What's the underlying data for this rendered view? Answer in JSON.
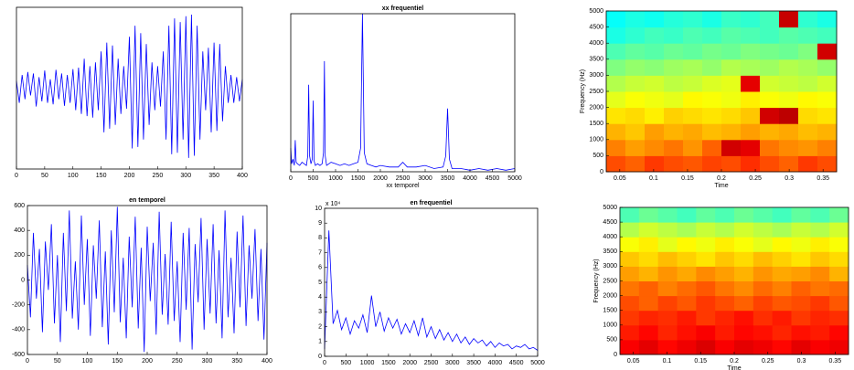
{
  "chart_data": [
    {
      "type": "line",
      "color": "#0000ff",
      "x": [
        0,
        5,
        10,
        15,
        20,
        25,
        30,
        35,
        40,
        45,
        50,
        55,
        60,
        65,
        70,
        75,
        80,
        85,
        90,
        95,
        100,
        105,
        110,
        115,
        120,
        125,
        130,
        135,
        140,
        145,
        150,
        155,
        160,
        165,
        170,
        175,
        180,
        185,
        190,
        195,
        200,
        205,
        210,
        215,
        220,
        225,
        230,
        235,
        240,
        245,
        250,
        255,
        260,
        265,
        270,
        275,
        280,
        285,
        290,
        295,
        300,
        305,
        310,
        315,
        320,
        325,
        330,
        335,
        340,
        345,
        350,
        355,
        360,
        365,
        370,
        375,
        380,
        385,
        390,
        395,
        400
      ],
      "values": [
        0.1,
        -0.2,
        0.18,
        -0.15,
        0.22,
        -0.1,
        0.2,
        -0.25,
        0.15,
        -0.18,
        0.24,
        -0.2,
        0.12,
        -0.22,
        0.25,
        -0.15,
        0.2,
        -0.24,
        0.18,
        -0.2,
        0.26,
        -0.3,
        0.28,
        -0.35,
        0.4,
        -0.38,
        0.3,
        -0.4,
        0.35,
        -0.3,
        0.5,
        -0.6,
        0.62,
        -0.55,
        0.58,
        -0.5,
        0.4,
        -0.35,
        0.3,
        -0.28,
        0.7,
        -0.82,
        0.85,
        -0.8,
        0.75,
        -0.7,
        0.6,
        -0.5,
        0.35,
        -0.3,
        0.3,
        -0.25,
        0.5,
        -0.7,
        0.85,
        -0.9,
        0.95,
        -0.88,
        0.9,
        -0.7,
        0.98,
        -0.95,
        1.0,
        -0.92,
        0.85,
        -0.7,
        0.5,
        -0.3,
        0.55,
        -0.6,
        0.62,
        -0.58,
        0.6,
        -0.45,
        0.3,
        -0.2,
        0.18,
        -0.2,
        0.15,
        -0.18,
        0.12
      ],
      "xlim": [
        0,
        400
      ],
      "ylim": [
        -1.1,
        1.1
      ],
      "xticks": [
        0,
        50,
        100,
        150,
        200,
        250,
        300,
        350,
        400
      ]
    },
    {
      "type": "line",
      "color": "#0000ff",
      "title": "xx frequentiel",
      "xlabel": "xx temporel",
      "x": [
        0,
        20,
        50,
        80,
        100,
        120,
        150,
        200,
        250,
        300,
        350,
        380,
        400,
        420,
        450,
        480,
        500,
        520,
        550,
        600,
        650,
        700,
        730,
        750,
        770,
        800,
        900,
        1000,
        1100,
        1200,
        1300,
        1400,
        1500,
        1560,
        1600,
        1640,
        1700,
        1800,
        1900,
        2000,
        2200,
        2400,
        2500,
        2600,
        2800,
        3000,
        3200,
        3400,
        3460,
        3500,
        3540,
        3600,
        3800,
        4000,
        4200,
        4400,
        4600,
        4800,
        5000
      ],
      "values": [
        0.15,
        0.05,
        0.08,
        0.04,
        0.2,
        0.06,
        0.05,
        0.04,
        0.06,
        0.05,
        0.04,
        0.1,
        0.55,
        0.1,
        0.05,
        0.08,
        0.45,
        0.07,
        0.04,
        0.05,
        0.04,
        0.05,
        0.12,
        0.7,
        0.1,
        0.04,
        0.06,
        0.05,
        0.04,
        0.05,
        0.04,
        0.05,
        0.06,
        0.15,
        1.0,
        0.12,
        0.05,
        0.04,
        0.03,
        0.04,
        0.03,
        0.03,
        0.06,
        0.03,
        0.03,
        0.04,
        0.02,
        0.03,
        0.1,
        0.4,
        0.08,
        0.02,
        0.02,
        0.01,
        0.02,
        0.01,
        0.02,
        0.01,
        0.02
      ],
      "xlim": [
        0,
        5000
      ],
      "ylim": [
        0,
        1
      ],
      "xticks": [
        0,
        500,
        1000,
        1500,
        2000,
        2500,
        3000,
        3500,
        4000,
        4500,
        5000
      ]
    },
    {
      "type": "heatmap",
      "colormap": "jet",
      "xlabel": "Time",
      "ylabel": "Frequency (Hz)",
      "xlim": [
        0.03,
        0.37
      ],
      "ylim": [
        0,
        5000
      ],
      "xticks": [
        0.05,
        0.1,
        0.15,
        0.2,
        0.25,
        0.3,
        0.35
      ],
      "yticks": [
        0,
        500,
        1000,
        1500,
        2000,
        2500,
        3000,
        3500,
        4000,
        4500,
        5000
      ],
      "z": [
        [
          0.8,
          0.78,
          0.82,
          0.8,
          0.79,
          0.81,
          0.8,
          0.83,
          0.8,
          0.78,
          0.82,
          0.8
        ],
        [
          0.75,
          0.72,
          0.74,
          0.76,
          0.73,
          0.78,
          0.92,
          0.9,
          0.76,
          0.74,
          0.73,
          0.75
        ],
        [
          0.7,
          0.68,
          0.72,
          0.7,
          0.71,
          0.69,
          0.7,
          0.72,
          0.7,
          0.71,
          0.69,
          0.7
        ],
        [
          0.65,
          0.66,
          0.64,
          0.67,
          0.66,
          0.65,
          0.66,
          0.68,
          0.92,
          0.94,
          0.66,
          0.65
        ],
        [
          0.6,
          0.62,
          0.61,
          0.6,
          0.63,
          0.62,
          0.61,
          0.64,
          0.62,
          0.61,
          0.63,
          0.62
        ],
        [
          0.55,
          0.57,
          0.58,
          0.56,
          0.57,
          0.59,
          0.6,
          0.9,
          0.58,
          0.57,
          0.56,
          0.58
        ],
        [
          0.5,
          0.52,
          0.51,
          0.53,
          0.54,
          0.52,
          0.55,
          0.54,
          0.53,
          0.55,
          0.54,
          0.52
        ],
        [
          0.45,
          0.47,
          0.46,
          0.48,
          0.47,
          0.49,
          0.48,
          0.5,
          0.49,
          0.48,
          0.5,
          0.92
        ],
        [
          0.4,
          0.42,
          0.44,
          0.43,
          0.45,
          0.44,
          0.46,
          0.45,
          0.44,
          0.46,
          0.45,
          0.44
        ],
        [
          0.38,
          0.4,
          0.39,
          0.41,
          0.42,
          0.4,
          0.43,
          0.42,
          0.44,
          0.93,
          0.42,
          0.4
        ]
      ]
    },
    {
      "type": "line",
      "color": "#0000ff",
      "title": "en temporel",
      "x": [
        0,
        5,
        10,
        15,
        20,
        25,
        30,
        35,
        40,
        45,
        50,
        55,
        60,
        65,
        70,
        75,
        80,
        85,
        90,
        95,
        100,
        105,
        110,
        115,
        120,
        125,
        130,
        135,
        140,
        145,
        150,
        155,
        160,
        165,
        170,
        175,
        180,
        185,
        190,
        195,
        200,
        205,
        210,
        215,
        220,
        225,
        230,
        235,
        240,
        245,
        250,
        255,
        260,
        265,
        270,
        275,
        280,
        285,
        290,
        295,
        300,
        305,
        310,
        315,
        320,
        325,
        330,
        335,
        340,
        345,
        350,
        355,
        360,
        365,
        370,
        375,
        380,
        385,
        390,
        395,
        400
      ],
      "values": [
        120,
        -300,
        380,
        -150,
        250,
        -420,
        310,
        -80,
        450,
        -350,
        200,
        -500,
        380,
        -250,
        560,
        -310,
        150,
        -400,
        520,
        -200,
        330,
        -450,
        280,
        -150,
        480,
        -380,
        230,
        -520,
        400,
        -260,
        590,
        -340,
        180,
        -470,
        350,
        -220,
        510,
        -390,
        260,
        -580,
        430,
        -170,
        300,
        -440,
        550,
        -280,
        210,
        -360,
        470,
        -330,
        150,
        -500,
        380,
        -240,
        420,
        -560,
        290,
        -180,
        500,
        -400,
        330,
        -270,
        450,
        -350,
        240,
        -470,
        560,
        -300,
        180,
        -430,
        390,
        -220,
        520,
        -370,
        280,
        -150,
        410,
        -330,
        250,
        -480,
        300
      ],
      "xlim": [
        0,
        400
      ],
      "ylim": [
        -600,
        600
      ],
      "xticks": [
        0,
        50,
        100,
        150,
        200,
        250,
        300,
        350,
        400
      ],
      "yticks": [
        -600,
        -400,
        -200,
        0,
        200,
        400,
        600
      ]
    },
    {
      "type": "line",
      "color": "#0000ff",
      "title": "en frequentiel",
      "y_multiplier": "x 10⁴",
      "x": [
        0,
        100,
        200,
        300,
        400,
        500,
        600,
        700,
        800,
        900,
        1000,
        1100,
        1200,
        1300,
        1400,
        1500,
        1600,
        1700,
        1800,
        1900,
        2000,
        2100,
        2200,
        2300,
        2400,
        2500,
        2600,
        2700,
        2800,
        2900,
        3000,
        3100,
        3200,
        3300,
        3400,
        3500,
        3600,
        3700,
        3800,
        3900,
        4000,
        4100,
        4200,
        4300,
        4400,
        4500,
        4600,
        4700,
        4800,
        4900,
        5000
      ],
      "values": [
        0.5,
        8.5,
        2.2,
        3.1,
        1.8,
        2.6,
        1.5,
        2.4,
        1.9,
        2.8,
        1.6,
        4.1,
        2.0,
        3.0,
        1.7,
        2.6,
        1.9,
        2.5,
        1.5,
        2.2,
        1.6,
        2.4,
        1.4,
        2.6,
        1.3,
        2.0,
        1.2,
        1.8,
        1.1,
        1.6,
        1.0,
        1.5,
        0.9,
        1.3,
        0.8,
        1.2,
        0.9,
        1.1,
        0.7,
        1.0,
        0.6,
        0.9,
        0.7,
        0.8,
        0.5,
        0.7,
        0.6,
        0.8,
        0.5,
        0.6,
        0.4
      ],
      "xlim": [
        0,
        5000
      ],
      "ylim": [
        0,
        10
      ],
      "xticks": [
        0,
        500,
        1000,
        1500,
        2000,
        2500,
        3000,
        3500,
        4000,
        4500,
        5000
      ],
      "yticks": [
        0,
        1,
        2,
        3,
        4,
        5,
        6,
        7,
        8,
        9,
        10
      ]
    },
    {
      "type": "heatmap",
      "colormap": "jet",
      "xlabel": "Time",
      "ylabel": "Frequency (Hz)",
      "xlim": [
        0.03,
        0.37
      ],
      "ylim": [
        0,
        5000
      ],
      "xticks": [
        0.05,
        0.1,
        0.15,
        0.2,
        0.25,
        0.3,
        0.35
      ],
      "yticks": [
        0,
        500,
        1000,
        1500,
        2000,
        2500,
        3000,
        3500,
        4000,
        4500,
        5000
      ],
      "z": [
        [
          0.88,
          0.9,
          0.87,
          0.89,
          0.91,
          0.88,
          0.9,
          0.89,
          0.87,
          0.9,
          0.88,
          0.89
        ],
        [
          0.85,
          0.87,
          0.84,
          0.86,
          0.88,
          0.85,
          0.87,
          0.86,
          0.84,
          0.86,
          0.85,
          0.87
        ],
        [
          0.82,
          0.84,
          0.83,
          0.85,
          0.82,
          0.84,
          0.86,
          0.83,
          0.85,
          0.82,
          0.84,
          0.83
        ],
        [
          0.8,
          0.78,
          0.81,
          0.79,
          0.82,
          0.8,
          0.78,
          0.81,
          0.79,
          0.8,
          0.82,
          0.79
        ],
        [
          0.76,
          0.78,
          0.75,
          0.77,
          0.79,
          0.76,
          0.74,
          0.77,
          0.75,
          0.78,
          0.76,
          0.77
        ],
        [
          0.72,
          0.7,
          0.73,
          0.71,
          0.74,
          0.72,
          0.7,
          0.73,
          0.71,
          0.72,
          0.74,
          0.7
        ],
        [
          0.68,
          0.66,
          0.69,
          0.67,
          0.65,
          0.68,
          0.66,
          0.69,
          0.67,
          0.65,
          0.68,
          0.66
        ],
        [
          0.62,
          0.64,
          0.6,
          0.63,
          0.61,
          0.64,
          0.62,
          0.6,
          0.63,
          0.61,
          0.64,
          0.62
        ],
        [
          0.55,
          0.58,
          0.56,
          0.54,
          0.57,
          0.55,
          0.58,
          0.56,
          0.54,
          0.57,
          0.55,
          0.58
        ],
        [
          0.45,
          0.48,
          0.46,
          0.44,
          0.47,
          0.45,
          0.48,
          0.46,
          0.44,
          0.47,
          0.45,
          0.48
        ]
      ]
    }
  ]
}
